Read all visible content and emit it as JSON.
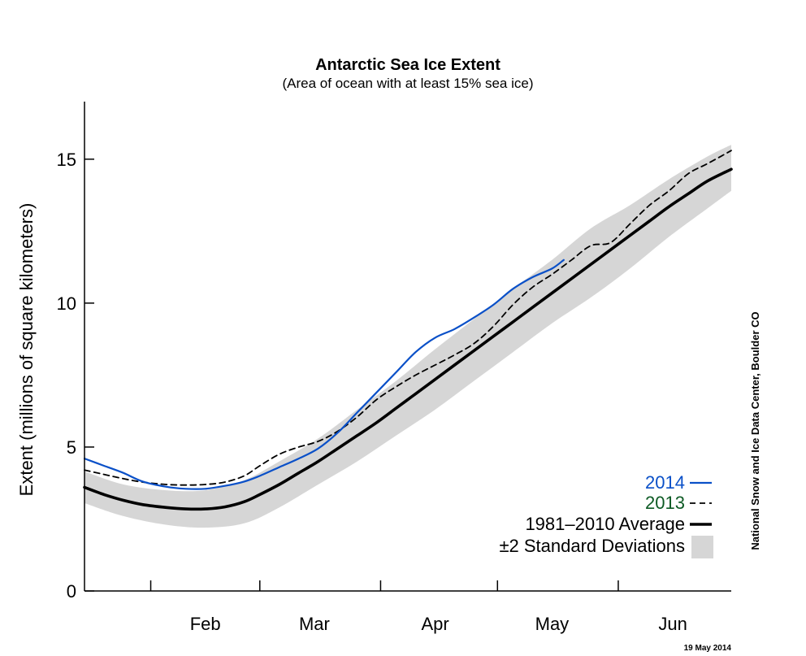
{
  "chart_data": {
    "type": "line",
    "title": "Antarctic Sea Ice Extent",
    "subtitle": "(Area of ocean with at least 15% sea ice)",
    "ylabel": "Extent (millions of square kilometers)",
    "xlabel": "",
    "ylim": [
      0,
      17
    ],
    "yticks": [
      0,
      5,
      10,
      15
    ],
    "xlim": [
      "2014-01-15",
      "2014-06-30"
    ],
    "month_ticks": [
      "2014-02-01",
      "2014-03-01",
      "2014-04-01",
      "2014-05-01",
      "2014-06-01"
    ],
    "month_labels": [
      {
        "date": "2014-02-15",
        "label": "Feb"
      },
      {
        "date": "2014-03-15",
        "label": "Mar"
      },
      {
        "date": "2014-04-15",
        "label": "Apr"
      },
      {
        "date": "2014-05-15",
        "label": "May"
      },
      {
        "date": "2014-06-15",
        "label": "Jun"
      }
    ],
    "grid": false,
    "legend_position": "bottom-right",
    "series": [
      {
        "name": "2014",
        "color": "#0a50c8",
        "style": "solid",
        "points": [
          [
            "2014-01-15",
            4.6
          ],
          [
            "2014-01-20",
            4.35
          ],
          [
            "2014-01-25",
            4.1
          ],
          [
            "2014-01-30",
            3.8
          ],
          [
            "2014-02-05",
            3.62
          ],
          [
            "2014-02-10",
            3.55
          ],
          [
            "2014-02-15",
            3.55
          ],
          [
            "2014-02-20",
            3.65
          ],
          [
            "2014-02-25",
            3.8
          ],
          [
            "2014-03-01",
            4.0
          ],
          [
            "2014-03-06",
            4.3
          ],
          [
            "2014-03-11",
            4.6
          ],
          [
            "2014-03-16",
            4.95
          ],
          [
            "2014-03-21",
            5.5
          ],
          [
            "2014-03-26",
            6.2
          ],
          [
            "2014-03-31",
            6.9
          ],
          [
            "2014-04-05",
            7.6
          ],
          [
            "2014-04-10",
            8.3
          ],
          [
            "2014-04-15",
            8.8
          ],
          [
            "2014-04-20",
            9.1
          ],
          [
            "2014-04-25",
            9.5
          ],
          [
            "2014-04-30",
            9.95
          ],
          [
            "2014-05-05",
            10.5
          ],
          [
            "2014-05-10",
            10.9
          ],
          [
            "2014-05-15",
            11.2
          ],
          [
            "2014-05-18",
            11.5
          ]
        ]
      },
      {
        "name": "2013",
        "color": "#000000",
        "legend_color": "#0d5a24",
        "style": "dashed",
        "points": [
          [
            "2014-01-15",
            4.2
          ],
          [
            "2014-01-20",
            4.05
          ],
          [
            "2014-01-25",
            3.9
          ],
          [
            "2014-01-30",
            3.78
          ],
          [
            "2014-02-05",
            3.7
          ],
          [
            "2014-02-10",
            3.68
          ],
          [
            "2014-02-15",
            3.7
          ],
          [
            "2014-02-20",
            3.78
          ],
          [
            "2014-02-25",
            4.0
          ],
          [
            "2014-03-01",
            4.35
          ],
          [
            "2014-03-06",
            4.75
          ],
          [
            "2014-03-11",
            5.0
          ],
          [
            "2014-03-16",
            5.2
          ],
          [
            "2014-03-21",
            5.55
          ],
          [
            "2014-03-26",
            6.05
          ],
          [
            "2014-03-31",
            6.65
          ],
          [
            "2014-04-05",
            7.1
          ],
          [
            "2014-04-10",
            7.5
          ],
          [
            "2014-04-15",
            7.85
          ],
          [
            "2014-04-20",
            8.2
          ],
          [
            "2014-04-25",
            8.6
          ],
          [
            "2014-04-30",
            9.2
          ],
          [
            "2014-05-05",
            9.95
          ],
          [
            "2014-05-10",
            10.55
          ],
          [
            "2014-05-15",
            11.0
          ],
          [
            "2014-05-20",
            11.5
          ],
          [
            "2014-05-25",
            12.0
          ],
          [
            "2014-05-30",
            12.1
          ],
          [
            "2014-06-04",
            12.75
          ],
          [
            "2014-06-09",
            13.4
          ],
          [
            "2014-06-14",
            13.9
          ],
          [
            "2014-06-19",
            14.5
          ],
          [
            "2014-06-24",
            14.85
          ],
          [
            "2014-06-30",
            15.3
          ]
        ]
      },
      {
        "name": "1981–2010 Average",
        "color": "#000000",
        "style": "thick",
        "points": [
          [
            "2014-01-15",
            3.6
          ],
          [
            "2014-01-20",
            3.35
          ],
          [
            "2014-01-25",
            3.15
          ],
          [
            "2014-01-30",
            3.0
          ],
          [
            "2014-02-05",
            2.9
          ],
          [
            "2014-02-10",
            2.85
          ],
          [
            "2014-02-15",
            2.85
          ],
          [
            "2014-02-20",
            2.92
          ],
          [
            "2014-02-25",
            3.1
          ],
          [
            "2014-03-01",
            3.35
          ],
          [
            "2014-03-06",
            3.7
          ],
          [
            "2014-03-11",
            4.1
          ],
          [
            "2014-03-16",
            4.5
          ],
          [
            "2014-03-21",
            4.95
          ],
          [
            "2014-03-26",
            5.4
          ],
          [
            "2014-03-31",
            5.85
          ],
          [
            "2014-04-05",
            6.35
          ],
          [
            "2014-04-10",
            6.85
          ],
          [
            "2014-04-15",
            7.35
          ],
          [
            "2014-04-20",
            7.85
          ],
          [
            "2014-04-25",
            8.35
          ],
          [
            "2014-04-30",
            8.85
          ],
          [
            "2014-05-05",
            9.35
          ],
          [
            "2014-05-10",
            9.85
          ],
          [
            "2014-05-15",
            10.35
          ],
          [
            "2014-05-20",
            10.85
          ],
          [
            "2014-05-25",
            11.35
          ],
          [
            "2014-05-30",
            11.85
          ],
          [
            "2014-06-04",
            12.35
          ],
          [
            "2014-06-09",
            12.85
          ],
          [
            "2014-06-14",
            13.35
          ],
          [
            "2014-06-19",
            13.8
          ],
          [
            "2014-06-24",
            14.25
          ],
          [
            "2014-06-30",
            14.65
          ]
        ]
      }
    ],
    "std_band": {
      "name": "±2 Standard Deviations",
      "color": "#d6d6d6",
      "points": [
        [
          "2014-01-15",
          3.05,
          4.15
        ],
        [
          "2014-01-25",
          2.6,
          3.7
        ],
        [
          "2014-02-05",
          2.3,
          3.5
        ],
        [
          "2014-02-15",
          2.2,
          3.5
        ],
        [
          "2014-02-25",
          2.35,
          3.85
        ],
        [
          "2014-03-06",
          2.9,
          4.5
        ],
        [
          "2014-03-16",
          3.7,
          5.3
        ],
        [
          "2014-03-26",
          4.5,
          6.3
        ],
        [
          "2014-04-05",
          5.4,
          7.3
        ],
        [
          "2014-04-15",
          6.3,
          8.4
        ],
        [
          "2014-04-25",
          7.3,
          9.45
        ],
        [
          "2014-05-05",
          8.3,
          10.5
        ],
        [
          "2014-05-15",
          9.3,
          11.5
        ],
        [
          "2014-05-25",
          10.2,
          12.6
        ],
        [
          "2014-06-04",
          11.2,
          13.4
        ],
        [
          "2014-06-14",
          12.3,
          14.3
        ],
        [
          "2014-06-24",
          13.3,
          15.1
        ],
        [
          "2014-06-30",
          13.9,
          15.5
        ]
      ]
    },
    "legend": [
      {
        "label": "2014",
        "series": 0
      },
      {
        "label": "2013",
        "series": 1
      },
      {
        "label": "1981–2010 Average",
        "series": 2
      },
      {
        "label": "±2 Standard Deviations",
        "series": "band"
      }
    ],
    "annotations": {
      "credit": "National Snow and Ice Data Center, Boulder CO",
      "date_stamp": "19 May 2014"
    }
  }
}
